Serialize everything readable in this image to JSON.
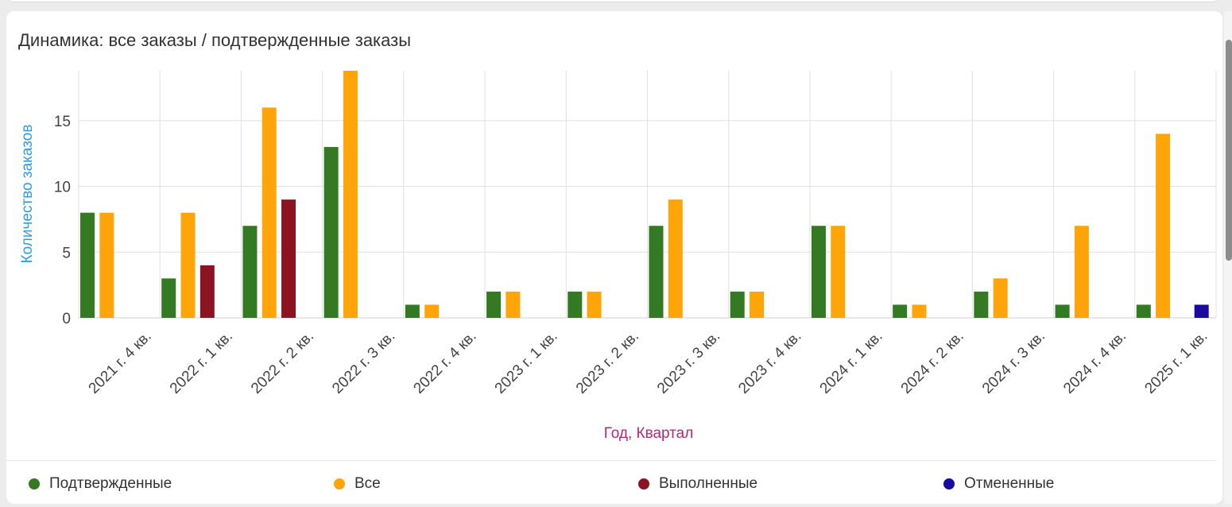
{
  "card": {
    "title": "Динамика: все заказы / подтвержденные заказы"
  },
  "chart_data": {
    "type": "bar",
    "title": "Динамика: все заказы / подтвержденные заказы",
    "xlabel": "Год, Квартал",
    "ylabel": "Количество заказов",
    "ylim": [
      0,
      18.8
    ],
    "yticks": [
      0,
      5,
      10,
      15
    ],
    "grid": true,
    "legend_position": "bottom",
    "categories": [
      "2021 г. 4 кв.",
      "2022 г. 1 кв.",
      "2022 г. 2 кв.",
      "2022 г. 3 кв.",
      "2022 г. 4 кв.",
      "2023 г. 1 кв.",
      "2023 г. 2 кв.",
      "2023 г. 3 кв.",
      "2023 г. 4 кв.",
      "2024 г. 1 кв.",
      "2024 г. 2 кв.",
      "2024 г. 3 кв.",
      "2024 г. 4 кв.",
      "2025 г. 1 кв."
    ],
    "series": [
      {
        "name": "Подтвержденные",
        "color": "#347a22",
        "values": [
          8,
          3,
          7,
          13,
          1,
          2,
          2,
          7,
          2,
          7,
          1,
          2,
          1,
          1
        ]
      },
      {
        "name": "Все",
        "color": "#ffa509",
        "values": [
          8,
          8,
          16,
          19,
          1,
          2,
          2,
          9,
          2,
          7,
          1,
          3,
          7,
          14
        ]
      },
      {
        "name": "Выполненные",
        "color": "#8b1421",
        "values": [
          0,
          4,
          9,
          0,
          0,
          0,
          0,
          0,
          0,
          0,
          0,
          0,
          0,
          0
        ]
      },
      {
        "name": "Отмененные",
        "color": "#1a0aa0",
        "values": [
          0,
          0,
          0,
          0,
          0,
          0,
          0,
          0,
          0,
          0,
          0,
          0,
          0,
          1
        ]
      }
    ],
    "colors": {
      "axis_title_y": "#2f9ee0",
      "axis_title_x": "#b3277e",
      "grid": "#e0e0e0",
      "tick_text": "#444444"
    }
  }
}
